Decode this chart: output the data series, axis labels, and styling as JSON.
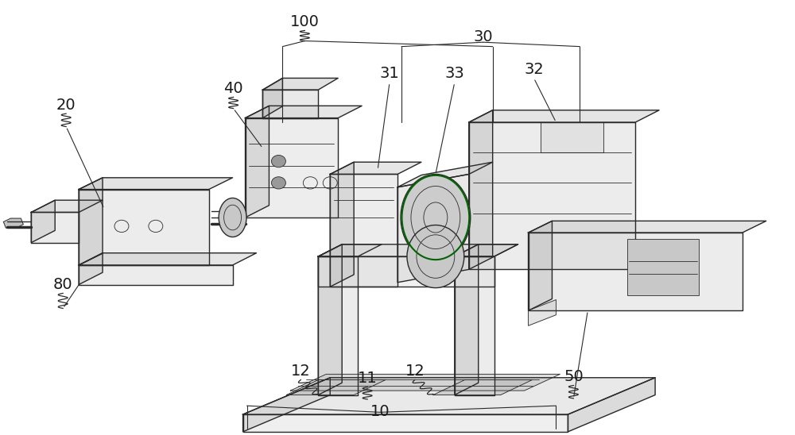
{
  "background_color": "#ffffff",
  "fig_width": 10.0,
  "fig_height": 5.48,
  "dpi": 100,
  "line_color": "#2a2a2a",
  "label_fontsize": 14
}
